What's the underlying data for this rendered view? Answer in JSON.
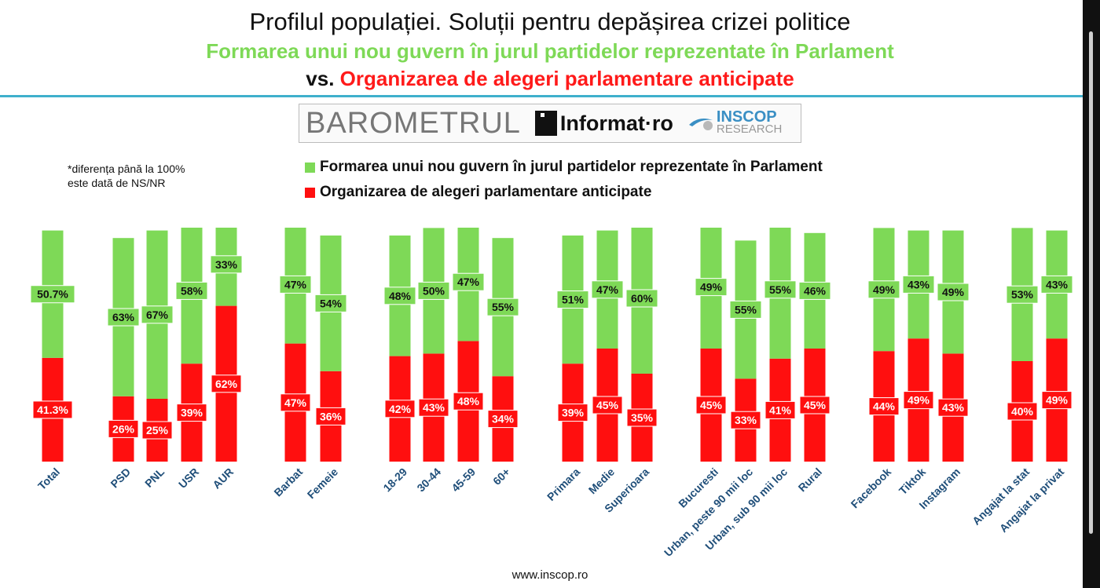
{
  "title": "Profilul populației. Soluții pentru depășirea crizei politice",
  "subtitle_green": "Formarea unui nou guvern în jurul partidelor reprezentate în Parlament",
  "subtitle_vs": "vs.",
  "subtitle_red": "Organizarea de alegeri parlamentare anticipate",
  "logo": {
    "barometrul": "BAROMETRUL",
    "informat": "Informat·ro",
    "inscop": "INSCOP",
    "research": "RESEARCH"
  },
  "note_line1": "*diferența până la 100%",
  "note_line2": "este dată de NS/NR",
  "footer": "www.inscop.ro",
  "colors": {
    "green": "#7ed957",
    "red": "#ff0f0f",
    "accent_rule": "#3fb0cc",
    "label_blue": "#1f4e79"
  },
  "chart_data": {
    "type": "bar",
    "stacked": true,
    "categories": [
      "Total",
      "PSD",
      "PNL",
      "USR",
      "AUR",
      "Barbat",
      "Femeie",
      "18-29",
      "30-44",
      "45-59",
      "60+",
      "Primara",
      "Medie",
      "Superioara",
      "Bucuresti",
      "Urban, peste 90 mii loc",
      "Urban, sub 90 mii loc",
      "Rural",
      "Facebook",
      "Tiktok",
      "Instagram",
      "Angajat la stat",
      "Angajat la privat"
    ],
    "series": [
      {
        "name": "Organizarea de alegeri parlamentare anticipate",
        "color": "#ff0f0f",
        "values": [
          41.3,
          26,
          25,
          39,
          62,
          47,
          36,
          42,
          43,
          48,
          34,
          39,
          45,
          35,
          45,
          33,
          41,
          45,
          44,
          49,
          43,
          40,
          49
        ],
        "labels": [
          "41.3%",
          "26%",
          "25%",
          "39%",
          "62%",
          "47%",
          "36%",
          "42%",
          "43%",
          "48%",
          "34%",
          "39%",
          "45%",
          "35%",
          "45%",
          "33%",
          "41%",
          "45%",
          "44%",
          "49%",
          "43%",
          "40%",
          "49%"
        ]
      },
      {
        "name": "Formarea unui nou guvern în jurul partidelor reprezentate în Parlament",
        "color": "#7ed957",
        "values": [
          50.7,
          63,
          67,
          58,
          33,
          47,
          54,
          48,
          50,
          47,
          55,
          51,
          47,
          60,
          49,
          55,
          55,
          46,
          49,
          43,
          49,
          53,
          43
        ],
        "labels": [
          "50.7%",
          "63%",
          "67%",
          "58%",
          "33%",
          "47%",
          "54%",
          "48%",
          "50%",
          "47%",
          "55%",
          "51%",
          "47%",
          "60%",
          "49%",
          "55%",
          "55%",
          "46%",
          "49%",
          "43%",
          "49%",
          "53%",
          "43%"
        ]
      }
    ],
    "groups": [
      [
        "Total"
      ],
      [
        "PSD",
        "PNL",
        "USR",
        "AUR"
      ],
      [
        "Barbat",
        "Femeie"
      ],
      [
        "18-29",
        "30-44",
        "45-59",
        "60+"
      ],
      [
        "Primara",
        "Medie",
        "Superioara"
      ],
      [
        "Bucuresti",
        "Urban, peste 90 mii loc",
        "Urban, sub 90 mii loc",
        "Rural"
      ],
      [
        "Facebook",
        "Tiktok",
        "Instagram"
      ],
      [
        "Angajat la stat",
        "Angajat la privat"
      ]
    ],
    "ylim": [
      0,
      100
    ],
    "grid": false,
    "legend_position": "top"
  }
}
